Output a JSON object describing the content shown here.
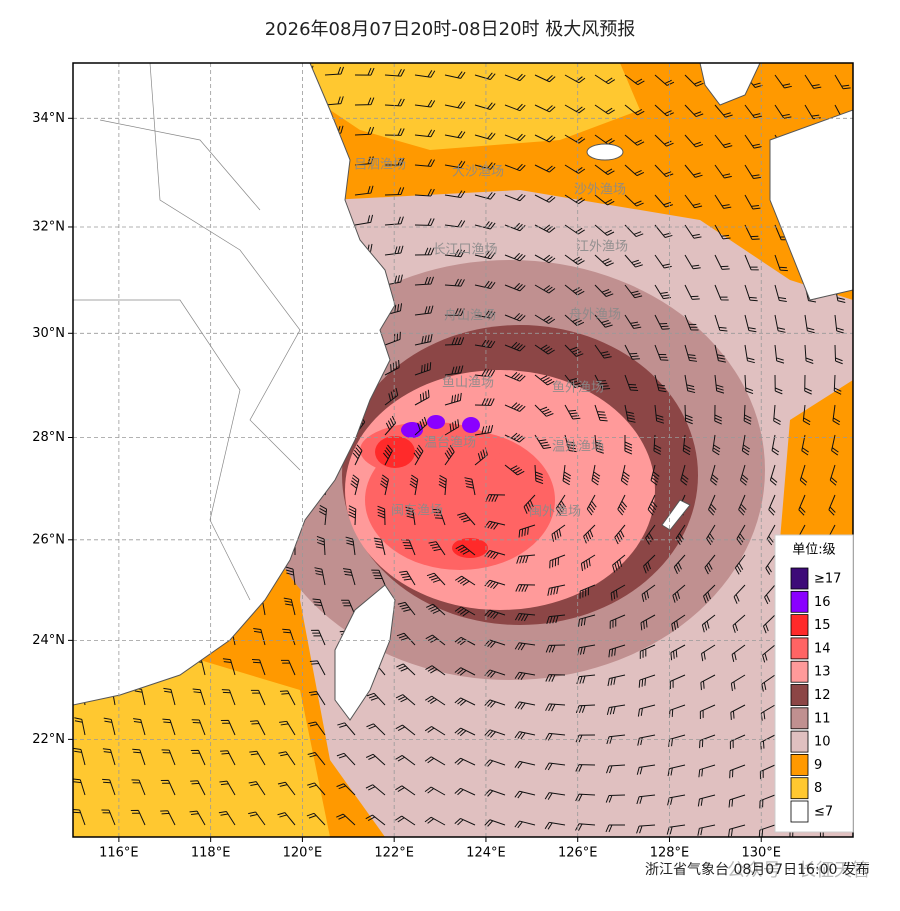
{
  "map": {
    "title": "2026年08月07日20时-08日20时 极大风预报",
    "xlim": [
      115,
      132
    ],
    "ylim": [
      20,
      35
    ],
    "xticks": [
      {
        "value": 116,
        "label": "116°E"
      },
      {
        "value": 118,
        "label": "118°E"
      },
      {
        "value": 120,
        "label": "120°E"
      },
      {
        "value": 122,
        "label": "122°E"
      },
      {
        "value": 124,
        "label": "124°E"
      },
      {
        "value": 126,
        "label": "126°E"
      },
      {
        "value": 128,
        "label": "128°E"
      },
      {
        "value": 130,
        "label": "130°E"
      }
    ],
    "yticks": [
      {
        "value": 22,
        "label": "22°N"
      },
      {
        "value": 24,
        "label": "24°N"
      },
      {
        "value": 26,
        "label": "26°N"
      },
      {
        "value": 28,
        "label": "28°N"
      },
      {
        "value": 30,
        "label": "30°N"
      },
      {
        "value": 32,
        "label": "32°N"
      },
      {
        "value": 34,
        "label": "34°N"
      }
    ],
    "grid": true,
    "fishing_grounds": [
      "吕泗渔场",
      "大沙渔场",
      "沙外渔场",
      "长江口渔场",
      "江外渔场",
      "舟山渔场",
      "舟外渔场",
      "鱼山渔场",
      "鱼外渔场",
      "温台渔场",
      "温外渔场",
      "闽东渔场",
      "闽外渔场"
    ],
    "legend": {
      "title": "单位:级",
      "items": [
        {
          "label": "≥17",
          "color": "#3d0a78"
        },
        {
          "label": "16",
          "color": "#8a00ff"
        },
        {
          "label": "15",
          "color": "#ff2a2a"
        },
        {
          "label": "14",
          "color": "#ff6464"
        },
        {
          "label": "13",
          "color": "#ff9a9a"
        },
        {
          "label": "12",
          "color": "#8c4646"
        },
        {
          "label": "11",
          "color": "#c09090"
        },
        {
          "label": "10",
          "color": "#e0c0c0"
        },
        {
          "label": "9",
          "color": "#ff9900"
        },
        {
          "label": "8",
          "color": "#ffc830"
        },
        {
          "label": "≤7",
          "color": "#ffffff"
        }
      ]
    },
    "footer": "浙江省气象台 08月07日16:00 发布",
    "watermark": "公众号 · 长征天管"
  }
}
